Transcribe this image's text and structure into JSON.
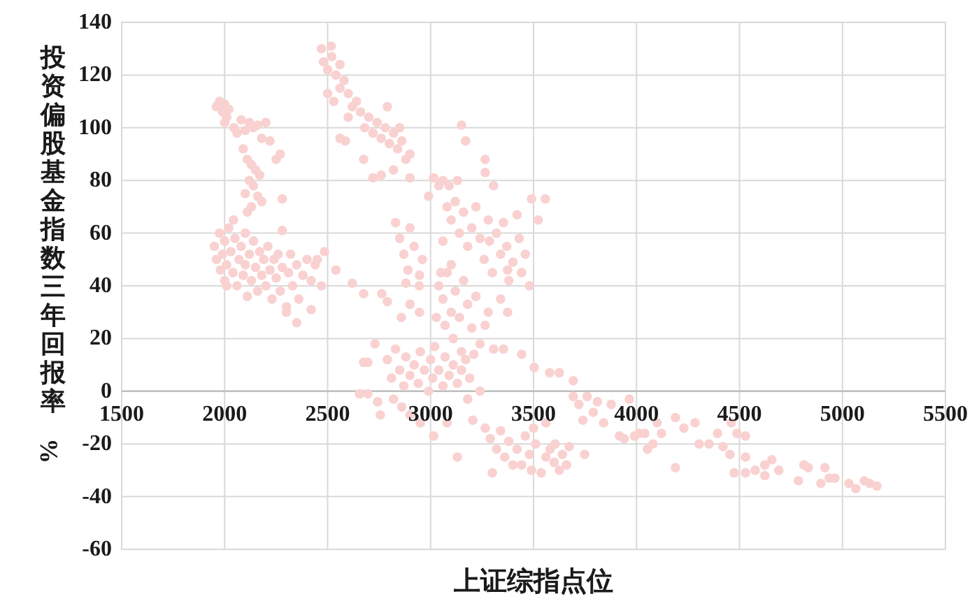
{
  "chart_data": {
    "type": "scatter",
    "xlabel": "上证综指点位",
    "ylabel": "投资偏股基金指数三年回报率%",
    "xlim": [
      1500,
      5500
    ],
    "xticks": [
      1500,
      2000,
      2500,
      3000,
      3500,
      4000,
      4500,
      5000,
      5500
    ],
    "ylim": [
      -60,
      140
    ],
    "yticks": [
      -60,
      -40,
      -20,
      0,
      20,
      40,
      60,
      80,
      100,
      120,
      140
    ],
    "grid": true,
    "marker": "circle",
    "series": [
      {
        "color": "#f9d1d1",
        "x": [
          1960,
          1975,
          1990,
          2000,
          2010,
          2020,
          2000,
          2045,
          2060,
          2080,
          2100,
          2120,
          2140,
          2160,
          2200,
          2180,
          2220,
          2270,
          2090,
          2110,
          2130,
          2150,
          2170,
          2120,
          2140,
          2100,
          2160,
          2180,
          2130,
          2110,
          2280,
          2250,
          1950,
          1960,
          1975,
          1980,
          1990,
          2000,
          2000,
          2010,
          2020,
          2030,
          2040,
          2043,
          2050,
          2060,
          2070,
          2080,
          2090,
          2100,
          2100,
          2110,
          2120,
          2130,
          2140,
          2150,
          2160,
          2170,
          2180,
          2190,
          2200,
          2210,
          2220,
          2230,
          2240,
          2250,
          2260,
          2270,
          2280,
          2280,
          2300,
          2310,
          2320,
          2330,
          2350,
          2350,
          2360,
          2380,
          2400,
          2420,
          2420,
          2440,
          2450,
          2485,
          2470,
          2010,
          2300,
          2470,
          2517,
          2480,
          2500,
          2520,
          2540,
          2560,
          2500,
          2530,
          2560,
          2580,
          2600,
          2620,
          2600,
          2640,
          2660,
          2680,
          2700,
          2720,
          2740,
          2760,
          2780,
          2790,
          2800,
          2820,
          2840,
          2860,
          2880,
          2900,
          2586,
          2560,
          2675,
          2720,
          2760,
          2820,
          2900,
          2850,
          2830,
          2850,
          2870,
          2890,
          2900,
          2920,
          2945,
          2960,
          2990,
          3015,
          3040,
          3060,
          3090,
          3130,
          3060,
          3080,
          3100,
          3120,
          3140,
          3150,
          3170,
          3160,
          3180,
          3200,
          3220,
          3240,
          3260,
          3265,
          3265,
          3280,
          3286,
          3306,
          3300,
          3320,
          3340,
          3354,
          3370,
          3380,
          3400,
          3420,
          3430,
          3442,
          3460,
          3490,
          3523,
          3557,
          3480,
          3100,
          3050,
          2540,
          2620,
          2675,
          2763,
          2790,
          2858,
          2880,
          2900,
          2946,
          2946,
          3028,
          3040,
          3060,
          3070,
          3080,
          3100,
          3110,
          3120,
          3140,
          3150,
          3160,
          3180,
          3200,
          3220,
          3240,
          3265,
          3280,
          3306,
          3354,
          3374,
          3374,
          3340,
          3442,
          2790,
          2810,
          2830,
          2850,
          2870,
          2880,
          2900,
          2920,
          2940,
          2950,
          2970,
          2990,
          3000,
          3010,
          3020,
          3040,
          3060,
          3070,
          3090,
          3110,
          3130,
          3150,
          3170,
          3190,
          3210,
          3240,
          2675,
          2695,
          2730,
          2655,
          2695,
          2743,
          2756,
          2820,
          2860,
          2900,
          2950,
          3015,
          3080,
          3130,
          3205,
          3180,
          3265,
          3290,
          3300,
          3320,
          3340,
          3360,
          3380,
          3400,
          3420,
          3442,
          3460,
          3480,
          3490,
          3510,
          3537,
          3560,
          3580,
          3600,
          3605,
          3625,
          3640,
          3660,
          3673,
          3748,
          3500,
          3560,
          3503,
          3578,
          3625,
          3693,
          3693,
          3720,
          3740,
          3760,
          3790,
          3810,
          3840,
          3877,
          3917,
          3940,
          3965,
          3990,
          4012,
          4040,
          4053,
          4080,
          4100,
          4121,
          4189,
          4189,
          4230,
          4284,
          4304,
          4352,
          4393,
          4420,
          4454,
          4488,
          4529,
          4460,
          4474,
          4529,
          4529,
          4576,
          4623,
          4623,
          4657,
          4691,
          4786,
          4813,
          4834,
          4895,
          4915,
          4936,
          4963,
          5031,
          5065,
          5106,
          5133,
          5167
        ],
        "values": [
          108,
          110,
          106,
          109,
          104,
          107,
          102,
          100,
          98,
          103,
          99,
          102,
          100,
          101,
          102,
          96,
          95,
          90,
          92,
          88,
          86,
          84,
          82,
          80,
          78,
          75,
          74,
          72,
          70,
          68,
          73,
          88,
          55,
          50,
          60,
          46,
          52,
          57,
          42,
          48,
          62,
          53,
          45,
          65,
          58,
          40,
          50,
          55,
          44,
          60,
          48,
          36,
          52,
          42,
          57,
          47,
          38,
          53,
          44,
          50,
          40,
          55,
          46,
          35,
          50,
          43,
          52,
          38,
          61,
          47,
          32,
          45,
          52,
          40,
          26,
          48,
          35,
          44,
          50,
          31,
          42,
          48,
          50,
          53,
          40,
          40,
          30,
          130,
          131,
          125,
          122,
          127,
          120,
          124,
          113,
          110,
          115,
          118,
          113,
          108,
          104,
          110,
          106,
          100,
          104,
          98,
          102,
          96,
          100,
          108,
          94,
          98,
          92,
          95,
          88,
          90,
          95,
          96,
          88,
          81,
          82,
          84,
          81,
          100,
          64,
          58,
          52,
          46,
          62,
          55,
          40,
          50,
          74,
          81,
          78,
          80,
          78,
          80,
          57,
          70,
          65,
          72,
          60,
          101,
          95,
          68,
          55,
          62,
          70,
          58,
          50,
          88,
          83,
          65,
          57,
          78,
          45,
          60,
          52,
          64,
          55,
          42,
          49,
          67,
          58,
          45,
          52,
          73,
          65,
          73,
          40,
          48,
          45,
          46,
          41,
          37,
          37,
          34,
          28,
          41,
          33,
          30,
          44,
          28,
          40,
          35,
          25,
          45,
          30,
          20,
          38,
          28,
          15,
          42,
          33,
          24,
          36,
          18,
          25,
          30,
          16,
          16,
          30,
          46,
          35,
          14,
          12,
          5,
          16,
          8,
          2,
          13,
          6,
          10,
          3,
          15,
          8,
          0,
          12,
          5,
          17,
          8,
          2,
          13,
          6,
          10,
          3,
          8,
          12,
          5,
          14,
          0,
          11,
          11,
          18,
          -1,
          -1,
          -4,
          -9,
          -3,
          -6,
          -9,
          -12,
          -17,
          -12,
          -25,
          -11,
          -3,
          -14,
          -18,
          -31,
          -22,
          -15,
          -25,
          -19,
          -28,
          -22,
          -28,
          -17,
          -24,
          -30,
          -20,
          -31,
          -25,
          -22,
          -27,
          -20,
          -30,
          -24,
          -28,
          -21,
          -24,
          -14,
          -12,
          9,
          7,
          7,
          4,
          -2,
          -5,
          -11,
          -2,
          -8,
          -4,
          -12,
          -5,
          -17,
          -18,
          -3,
          -17,
          -16,
          -16,
          -22,
          -20,
          -12,
          -16,
          -10,
          -29,
          -14,
          -12,
          -20,
          -20,
          -16,
          -21,
          -24,
          -16,
          -17,
          -12,
          -31,
          -31,
          -25,
          -30,
          -28,
          -32,
          -26,
          -30,
          -34,
          -28,
          -29,
          -35,
          -29,
          -33,
          -33,
          -35,
          -37,
          -34,
          -35,
          -36
        ]
      }
    ]
  }
}
